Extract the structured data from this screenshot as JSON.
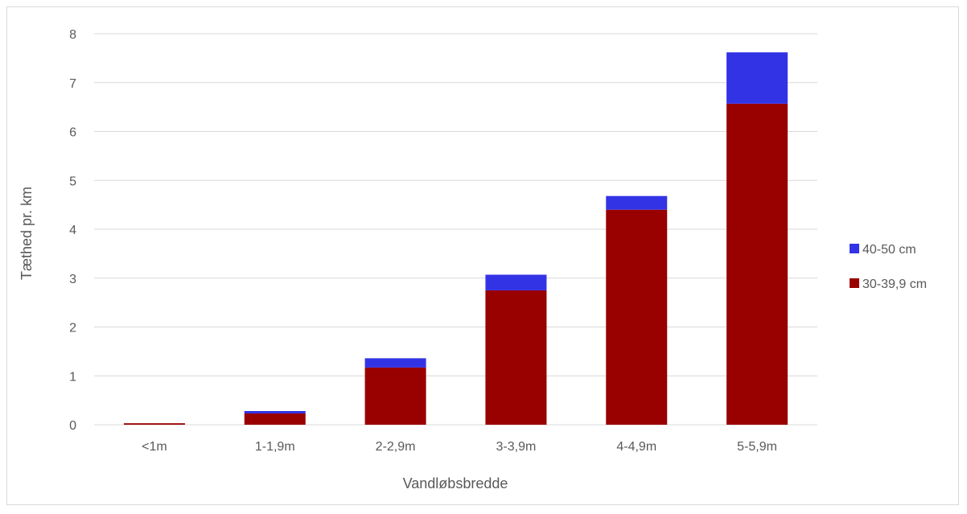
{
  "chart_data": {
    "type": "bar",
    "stacked": true,
    "title": "",
    "xlabel": "Vandløbsbredde",
    "ylabel": "Tæthed pr. km",
    "categories": [
      "<1m",
      "1-1,9m",
      "2-2,9m",
      "3-3,9m",
      "4-4,9m",
      "5-5,9m"
    ],
    "series": [
      {
        "name": "30-39,9 cm",
        "color": "#990000",
        "values": [
          0.03,
          0.23,
          1.17,
          2.75,
          4.4,
          6.57
        ]
      },
      {
        "name": "40-50 cm",
        "color": "#3333e6",
        "values": [
          0.0,
          0.05,
          0.19,
          0.32,
          0.28,
          1.05
        ]
      }
    ],
    "ylim": [
      0,
      8
    ],
    "yticks": [
      0,
      1,
      2,
      3,
      4,
      5,
      6,
      7,
      8
    ],
    "grid": true,
    "legend_position": "right",
    "legend_order": [
      "40-50 cm",
      "30-39,9 cm"
    ],
    "colors": {
      "gridline": "#d9d9d9",
      "axis_text": "#595959"
    }
  }
}
